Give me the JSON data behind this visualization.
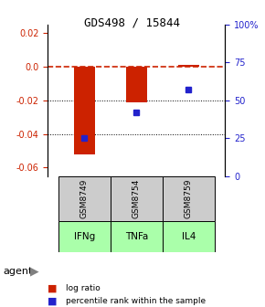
{
  "title": "GDS498 / 15844",
  "samples": [
    "GSM8749",
    "GSM8754",
    "GSM8759"
  ],
  "agents": [
    "IFNg",
    "TNFa",
    "IL4"
  ],
  "log_ratios": [
    -0.052,
    -0.021,
    0.001
  ],
  "percentile_ranks": [
    25,
    42,
    57
  ],
  "ylim_left": [
    -0.065,
    0.025
  ],
  "ylim_right": [
    0,
    100
  ],
  "left_yticks": [
    -0.06,
    -0.04,
    -0.02,
    0.0,
    0.02
  ],
  "right_yticks": [
    0,
    25,
    50,
    75,
    100
  ],
  "right_yticklabels": [
    "0",
    "25",
    "50",
    "75",
    "100%"
  ],
  "bar_color": "#cc2200",
  "dot_color": "#2222cc",
  "agent_colors": [
    "#aaffaa",
    "#aaffaa",
    "#aaffaa"
  ],
  "sample_bg_color": "#cccccc",
  "zero_line_color": "#cc2200",
  "grid_color": "#000000",
  "bar_width": 0.4
}
